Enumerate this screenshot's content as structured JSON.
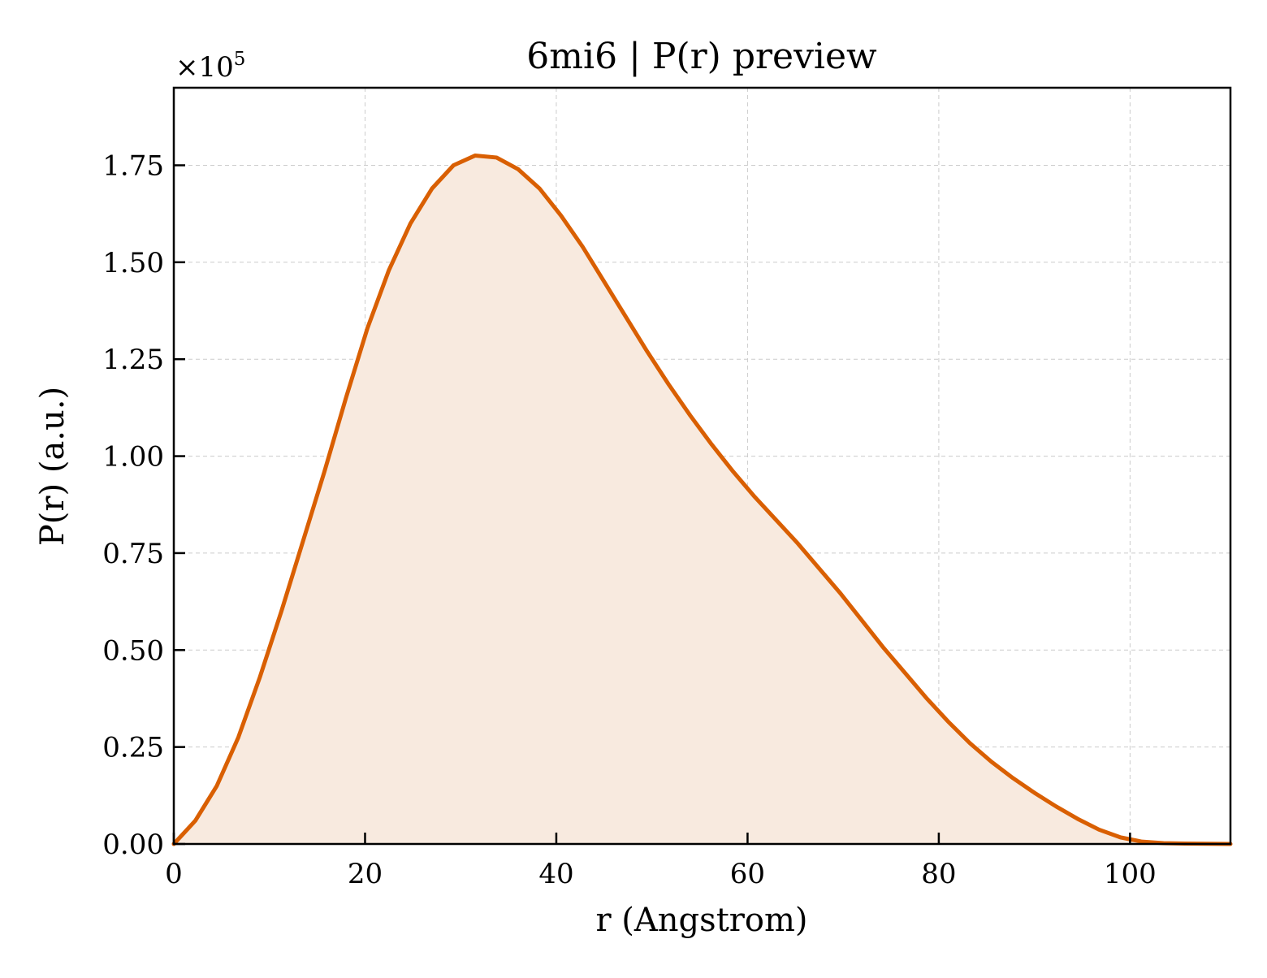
{
  "chart_data": {
    "type": "area",
    "title": "6mi6 | P(r) preview",
    "xlabel": "r (Angstrom)",
    "ylabel": "P(r) (a.u.)",
    "y_multiplier": "×10",
    "y_multiplier_exponent": "5",
    "xlim": [
      0,
      110.5
    ],
    "ylim": [
      0,
      1.95
    ],
    "x_ticks": [
      0,
      20,
      40,
      60,
      80,
      100
    ],
    "x_tick_labels": [
      "0",
      "20",
      "40",
      "60",
      "80",
      "100"
    ],
    "y_ticks": [
      0,
      0.25,
      0.5,
      0.75,
      1.0,
      1.25,
      1.5,
      1.75
    ],
    "y_tick_labels": [
      "0.00",
      "0.25",
      "0.50",
      "0.75",
      "1.00",
      "1.25",
      "1.50",
      "1.75"
    ],
    "grid": true,
    "grid_style": "dashed",
    "line_color": "#d95f02",
    "fill_color": "#f8eadf",
    "series": [
      {
        "x": [
          0,
          2.25,
          4.5,
          6.75,
          9,
          11.25,
          13.5,
          15.75,
          18,
          20.25,
          22.5,
          24.75,
          27,
          29.25,
          31.5,
          33.75,
          36,
          38.25,
          40.5,
          42.75,
          45,
          47.25,
          49.5,
          51.75,
          54,
          56.25,
          58.5,
          60.75,
          63,
          65.25,
          67.5,
          69.75,
          72,
          74.25,
          76.5,
          78.75,
          81,
          83.25,
          85.5,
          87.75,
          90,
          92.25,
          94.5,
          96.75,
          99,
          101.25,
          103.5,
          105.75,
          108,
          110.5
        ],
        "values": [
          0.0,
          0.06,
          0.15,
          0.275,
          0.43,
          0.6,
          0.78,
          0.96,
          1.15,
          1.33,
          1.48,
          1.6,
          1.69,
          1.75,
          1.775,
          1.77,
          1.74,
          1.69,
          1.62,
          1.54,
          1.45,
          1.36,
          1.27,
          1.185,
          1.105,
          1.03,
          0.96,
          0.895,
          0.835,
          0.775,
          0.71,
          0.645,
          0.575,
          0.505,
          0.44,
          0.375,
          0.315,
          0.26,
          0.212,
          0.17,
          0.132,
          0.097,
          0.065,
          0.037,
          0.017,
          0.006,
          0.002,
          0.001,
          0.0005,
          0.0
        ]
      }
    ]
  }
}
